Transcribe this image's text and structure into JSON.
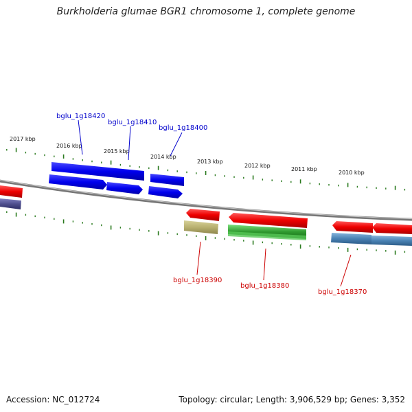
{
  "title": "Burkholderia glumae BGR1 chromosome 1, complete genome",
  "footer": {
    "accession": "Accession: NC_012724",
    "info": "Topology: circular; Length: 3,906,529 bp; Genes: 3,352"
  },
  "kbp_labels": [
    "2017 kbp",
    "2016 kbp",
    "2015 kbp",
    "2014 kbp",
    "2013 kbp",
    "2012 kbp",
    "2011 kbp",
    "2010 kbp"
  ],
  "gene_labels": {
    "top": [
      "bglu_1g18420",
      "bglu_1g18410",
      "bglu_1g18400"
    ],
    "bottom": [
      "bglu_1g18390",
      "bglu_1g18380",
      "bglu_1g18370"
    ]
  },
  "colors": {
    "forward_cds": "#0000ee",
    "reverse_cds": "#ee0000",
    "top_label": "#0000cc",
    "bottom_label": "#cc0000",
    "tick": "#2a7a1e",
    "backbone": "#888888",
    "feature_olive": "#b8b070",
    "feature_green": "#2f9a2f",
    "feature_steel": "#4a82b4",
    "feature_slate": "#4e4e8e"
  }
}
